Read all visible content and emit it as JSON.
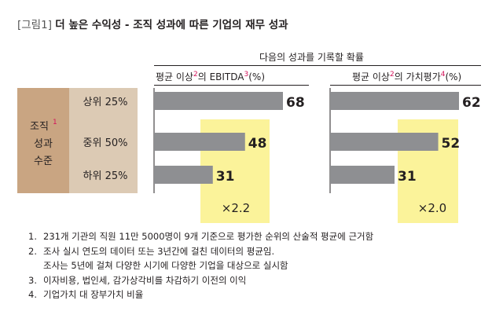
{
  "figure": {
    "label": "[그림1]",
    "title": "더 높은 수익성 - 조직 성과에 따른 기업의 재무 성과"
  },
  "header": {
    "top": "다음의 성과를 기록할 확률",
    "left_pre": "평균 이상",
    "left_sup1": "2",
    "left_mid": "의 EBITDA",
    "left_sup2": "3",
    "left_post": "(%)",
    "right_pre": "평균 이상",
    "right_sup1": "2",
    "right_mid": "의 가치평가",
    "right_sup2": "4",
    "right_post": "(%)"
  },
  "row_group": {
    "line1": "조직",
    "sup": "1",
    "line2": "성과",
    "line3": "수준"
  },
  "colors": {
    "bar": "#8e8f92",
    "highlight": "#fbf39a",
    "group_bg": "#c9a582",
    "label_bg": "#dccab4",
    "accent": "#d4145a",
    "text": "#231f20"
  },
  "chart_data": [
    {
      "type": "bar",
      "orientation": "horizontal",
      "title": "평균 이상의 EBITDA (%)",
      "categories": [
        "상위 25%",
        "중위 50%",
        "하위 25%"
      ],
      "values": [
        68,
        48,
        31
      ],
      "xlim": [
        0,
        68
      ],
      "annotation": "×2.2",
      "grid": false
    },
    {
      "type": "bar",
      "orientation": "horizontal",
      "title": "평균 이상의 가치평가 (%)",
      "categories": [
        "상위 25%",
        "중위 50%",
        "하위 25%"
      ],
      "values": [
        62,
        52,
        31
      ],
      "xlim": [
        0,
        62
      ],
      "annotation": "×2.0",
      "grid": false
    }
  ],
  "notes": [
    {
      "num": "1.",
      "text": "231개 기관의 직원 11만 5000명이 9개 기준으로 평가한 순위의 산술적 평균에 근거함"
    },
    {
      "num": "2.",
      "text": "조사 실시 연도의 데이터 또는 3년간에 걸친 데이터의 평균임."
    },
    {
      "num": "",
      "text": "조사는 5년에 걸쳐 다양한 시기에 다양한 기업을 대상으로 실시함"
    },
    {
      "num": "3.",
      "text": "이자비용, 법인세, 감가상각비를 차감하기 이전의 이익"
    },
    {
      "num": "4.",
      "text": "기업가치 대 장부가치 비율"
    }
  ]
}
